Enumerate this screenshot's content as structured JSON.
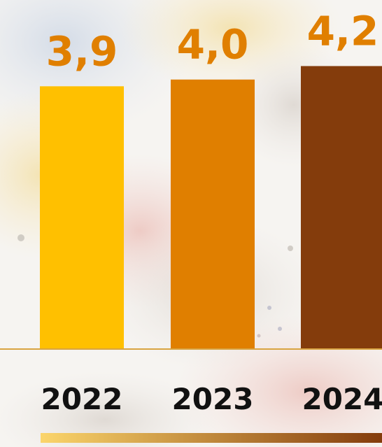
{
  "chart_data": {
    "type": "bar",
    "categories": [
      "2022",
      "2023",
      "2024"
    ],
    "values": [
      3.9,
      4.0,
      4.2
    ],
    "value_labels": [
      "3,9",
      "4,0",
      "4,2"
    ],
    "bar_colors": [
      "#FFC000",
      "#E07F00",
      "#843C0C"
    ],
    "value_label_color": "#E07F00",
    "axis_line_color": "#D9A441",
    "gradient_bar_colors": [
      "#FBD56B",
      "#843C0C"
    ],
    "title": "",
    "xlabel": "",
    "ylabel": "",
    "ylim": [
      0,
      4.35
    ],
    "grid": false,
    "legend": "none"
  }
}
